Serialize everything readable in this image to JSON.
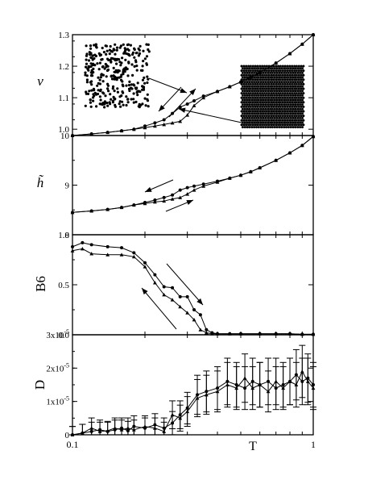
{
  "chart_data": [
    {
      "type": "line",
      "panel": "v",
      "ylabel": "v",
      "ylim": [
        0.98,
        1.3
      ],
      "yticks": [
        "1.0",
        "1.1",
        "1.2",
        "1.3"
      ],
      "ytick_values": [
        1.0,
        1.1,
        1.2,
        1.3
      ],
      "series": [
        {
          "x": [
            0.1,
            0.12,
            0.14,
            0.16,
            0.18,
            0.2,
            0.22,
            0.24,
            0.26,
            0.28,
            0.3,
            0.32,
            0.35,
            0.4,
            0.45,
            0.5,
            0.55,
            0.6,
            0.7,
            0.8,
            0.9,
            1.0
          ],
          "values": [
            0.98,
            0.985,
            0.99,
            0.995,
            1.0,
            1.01,
            1.02,
            1.03,
            1.05,
            1.07,
            1.08,
            1.09,
            1.105,
            1.12,
            1.135,
            1.15,
            1.165,
            1.18,
            1.21,
            1.24,
            1.27,
            1.3
          ]
        },
        {
          "x": [
            0.1,
            0.12,
            0.14,
            0.16,
            0.18,
            0.2,
            0.22,
            0.24,
            0.26,
            0.28,
            0.3,
            0.32,
            0.35,
            0.4,
            0.45,
            0.5,
            0.55,
            0.6,
            0.7,
            0.8,
            0.9,
            1.0
          ],
          "values": [
            0.98,
            0.985,
            0.99,
            0.995,
            1.0,
            1.005,
            1.01,
            1.015,
            1.02,
            1.025,
            1.045,
            1.075,
            1.1,
            1.12,
            1.135,
            1.15,
            1.165,
            1.18,
            1.21,
            1.24,
            1.27,
            1.3
          ]
        }
      ],
      "insets": [
        "disordered particle snapshot (left)",
        "ordered particle snapshot (right)"
      ]
    },
    {
      "type": "line",
      "panel": "h",
      "ylabel": "h̃",
      "ylim": [
        8,
        10
      ],
      "yticks": [
        "8",
        "9",
        "10"
      ],
      "ytick_values": [
        8,
        9,
        10
      ],
      "series": [
        {
          "x": [
            0.1,
            0.12,
            0.14,
            0.16,
            0.18,
            0.2,
            0.22,
            0.24,
            0.26,
            0.28,
            0.3,
            0.32,
            0.35,
            0.4,
            0.45,
            0.5,
            0.55,
            0.6,
            0.7,
            0.8,
            0.9,
            1.0
          ],
          "values": [
            8.45,
            8.48,
            8.51,
            8.55,
            8.6,
            8.65,
            8.7,
            8.75,
            8.8,
            8.9,
            8.95,
            8.98,
            9.02,
            9.08,
            9.14,
            9.2,
            9.27,
            9.35,
            9.5,
            9.65,
            9.8,
            9.98
          ]
        },
        {
          "x": [
            0.1,
            0.12,
            0.14,
            0.16,
            0.18,
            0.2,
            0.22,
            0.24,
            0.26,
            0.28,
            0.3,
            0.32,
            0.35,
            0.4,
            0.45,
            0.5,
            0.55,
            0.6,
            0.7,
            0.8,
            0.9,
            1.0
          ],
          "values": [
            8.45,
            8.48,
            8.51,
            8.55,
            8.6,
            8.63,
            8.66,
            8.68,
            8.72,
            8.75,
            8.82,
            8.9,
            8.98,
            9.06,
            9.14,
            9.2,
            9.27,
            9.35,
            9.5,
            9.65,
            9.8,
            9.98
          ]
        }
      ]
    },
    {
      "type": "line",
      "panel": "B6",
      "ylabel": "B6",
      "ylim": [
        0.0,
        1.0
      ],
      "yticks": [
        "0.0",
        "0.5",
        "1.0"
      ],
      "ytick_values": [
        0.0,
        0.5,
        1.0
      ],
      "series": [
        {
          "x": [
            0.1,
            0.11,
            0.12,
            0.14,
            0.16,
            0.18,
            0.2,
            0.22,
            0.24,
            0.26,
            0.28,
            0.3,
            0.32,
            0.34,
            0.36,
            0.38,
            0.4,
            0.45,
            0.5,
            0.6,
            0.7,
            0.8,
            0.9,
            1.0
          ],
          "values": [
            0.88,
            0.92,
            0.9,
            0.88,
            0.87,
            0.82,
            0.72,
            0.6,
            0.48,
            0.47,
            0.38,
            0.38,
            0.25,
            0.2,
            0.05,
            0.02,
            0.01,
            0.01,
            0.01,
            0.01,
            0.01,
            0.01,
            0.005,
            0.005
          ]
        },
        {
          "x": [
            0.1,
            0.11,
            0.12,
            0.14,
            0.16,
            0.18,
            0.2,
            0.22,
            0.24,
            0.26,
            0.28,
            0.3,
            0.32,
            0.34,
            0.36,
            0.38,
            0.4,
            0.45,
            0.5,
            0.6,
            0.7,
            0.8,
            0.9,
            1.0
          ],
          "values": [
            0.84,
            0.86,
            0.81,
            0.8,
            0.8,
            0.78,
            0.68,
            0.52,
            0.4,
            0.35,
            0.28,
            0.22,
            0.15,
            0.05,
            0.02,
            0.01,
            0.01,
            0.01,
            0.01,
            0.01,
            0.01,
            0.01,
            0.005,
            0.005
          ]
        }
      ]
    },
    {
      "type": "line",
      "panel": "D",
      "ylabel": "D",
      "xlabel": "T",
      "xlim": [
        0.1,
        1
      ],
      "xscale": "log",
      "xticks": [
        "0.1",
        "1"
      ],
      "ylim": [
        0,
        3e-05
      ],
      "yticks": [
        "0",
        "1x10-5",
        "2x10-5",
        "3x10-5"
      ],
      "ytick_values": [
        0,
        1e-05,
        2e-05,
        3e-05
      ],
      "series": [
        {
          "x": [
            0.1,
            0.11,
            0.12,
            0.13,
            0.14,
            0.15,
            0.16,
            0.17,
            0.18,
            0.2,
            0.22,
            0.24,
            0.26,
            0.28,
            0.3,
            0.33,
            0.36,
            0.4,
            0.44,
            0.48,
            0.52,
            0.56,
            0.6,
            0.65,
            0.7,
            0.75,
            0.8,
            0.85,
            0.9,
            0.95,
            1.0
          ],
          "values": [
            0.0,
            5e-07,
            1e-06,
            1.5e-06,
            1e-06,
            1.5e-06,
            2e-06,
            1.2e-06,
            2.5e-06,
            2e-06,
            3e-06,
            2e-06,
            3.5e-06,
            6e-06,
            8e-06,
            1.2e-05,
            1.3e-05,
            1.4e-05,
            1.6e-05,
            1.5e-05,
            1.4e-05,
            1.6e-05,
            1.5e-05,
            1.6e-05,
            1.4e-05,
            1.5e-05,
            1.6e-05,
            1.8e-05,
            1.6e-05,
            1.7e-05,
            1.5e-05
          ]
        },
        {
          "x": [
            0.1,
            0.11,
            0.12,
            0.13,
            0.14,
            0.15,
            0.16,
            0.17,
            0.18,
            0.2,
            0.22,
            0.24,
            0.26,
            0.28,
            0.3,
            0.33,
            0.36,
            0.4,
            0.44,
            0.48,
            0.52,
            0.56,
            0.6,
            0.65,
            0.7,
            0.75,
            0.8,
            0.85,
            0.9,
            0.95,
            1.0
          ],
          "values": [
            0.0,
            5e-07,
            2e-06,
            1e-06,
            1.2e-06,
            2e-06,
            1.5e-06,
            2e-06,
            1.5e-06,
            2.5e-06,
            2e-06,
            1e-06,
            6e-06,
            5e-06,
            7e-06,
            1.1e-05,
            1.2e-05,
            1.3e-05,
            1.5e-05,
            1.4e-05,
            1.7e-05,
            1.4e-05,
            1.5e-05,
            1.3e-05,
            1.6e-05,
            1.4e-05,
            1.6e-05,
            1.5e-05,
            1.9e-05,
            1.6e-05,
            1.4e-05
          ]
        }
      ],
      "error_bars": true
    }
  ]
}
